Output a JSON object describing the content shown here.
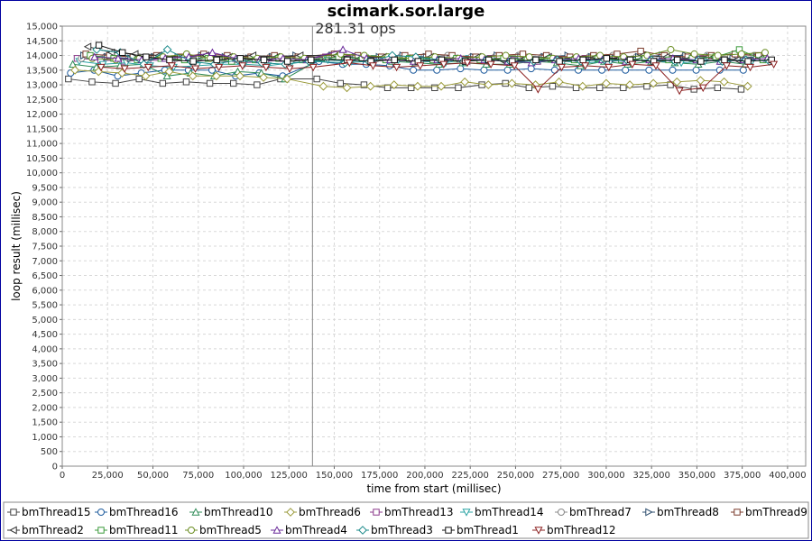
{
  "chart_data": {
    "type": "line",
    "title": "scimark.sor.large",
    "annotation": "281.31 ops",
    "xlabel": "time from start (millisec)",
    "ylabel": "loop result (millisec)",
    "xlim": [
      0,
      410000
    ],
    "ylim": [
      0,
      15000
    ],
    "marker_x": 138000,
    "grid": true,
    "legend_position": "bottom",
    "x_ticks": [
      "0",
      "25,000",
      "50,000",
      "75,000",
      "100,000",
      "125,000",
      "150,000",
      "175,000",
      "200,000",
      "225,000",
      "250,000",
      "275,000",
      "300,000",
      "325,000",
      "350,000",
      "375,000",
      "400,000"
    ],
    "y_ticks": [
      "0",
      "500",
      "1,000",
      "1,500",
      "2,000",
      "2,500",
      "3,000",
      "3,500",
      "4,000",
      "4,500",
      "5,000",
      "5,500",
      "6,000",
      "6,500",
      "7,000",
      "7,500",
      "8,000",
      "8,500",
      "9,000",
      "9,500",
      "10,000",
      "10,500",
      "11,000",
      "11,500",
      "12,000",
      "12,500",
      "13,000",
      "13,500",
      "14,000",
      "14,500",
      "15,000"
    ],
    "x": [
      13000,
      26000,
      39000,
      52000,
      65000,
      78000,
      91000,
      104000,
      117000,
      130000,
      150000,
      163000,
      176000,
      189000,
      202000,
      215000,
      228000,
      241000,
      254000,
      267000,
      280000,
      293000,
      306000,
      319000,
      332000,
      345000,
      358000,
      371000,
      384000
    ],
    "series": [
      {
        "name": "bmThread15",
        "color": "#444444",
        "marker": "square",
        "values": [
          13200,
          13100,
          13050,
          13200,
          13050,
          13100,
          13050,
          13050,
          13000,
          13200,
          13200,
          13050,
          13000,
          12900,
          12900,
          12900,
          12900,
          13000,
          13050,
          12900,
          12950,
          12900,
          12900,
          12900,
          12950,
          13000,
          12850,
          12900,
          12850
        ]
      },
      {
        "name": "bmThread16",
        "color": "#1f5c9e",
        "marker": "circle",
        "values": [
          13400,
          13500,
          13300,
          13400,
          13500,
          13500,
          13500,
          13300,
          13400,
          13300,
          13800,
          13700,
          13700,
          13650,
          13500,
          13500,
          13550,
          13500,
          13500,
          13550,
          13500,
          13500,
          13500,
          13500,
          13500,
          13500,
          13500,
          13500,
          13500
        ]
      },
      {
        "name": "bmThread10",
        "color": "#2e8b57",
        "marker": "triangle-up",
        "values": [
          13700,
          13600,
          13650,
          13700,
          13300,
          13400,
          13300,
          13450,
          13400,
          13200,
          13900,
          13850,
          13900,
          13800,
          13750,
          13700,
          13750,
          13700,
          13700,
          13800,
          13750,
          13650,
          13800,
          13700,
          13800,
          13750,
          13700,
          13800,
          13700
        ]
      },
      {
        "name": "bmThread6",
        "color": "#9a9a3a",
        "marker": "diamond",
        "values": [
          13500,
          13450,
          13400,
          13300,
          13450,
          13300,
          13300,
          13300,
          13250,
          13200,
          12950,
          12900,
          12950,
          13000,
          12950,
          12950,
          13100,
          13000,
          13050,
          13000,
          13100,
          12950,
          13050,
          13000,
          13050,
          13100,
          13150,
          13100,
          12950
        ]
      },
      {
        "name": "bmThread13",
        "color": "#8b3a8b",
        "marker": "square",
        "values": [
          13900,
          13850,
          13800,
          13850,
          13800,
          13850,
          13800,
          13750,
          13800,
          13850,
          13950,
          13900,
          13850,
          13900,
          13800,
          13850,
          13800,
          13900,
          13850,
          13800,
          13850,
          13900,
          13800,
          13850,
          13800,
          13850,
          13900,
          13850,
          13800
        ]
      },
      {
        "name": "bmThread14",
        "color": "#2aa3a3",
        "marker": "triangle-down",
        "values": [
          13800,
          13700,
          13750,
          13650,
          13600,
          13650,
          13700,
          13700,
          13650,
          13750,
          13850,
          13800,
          13900,
          13850,
          13800,
          13750,
          13900,
          13850,
          13800,
          13850,
          13800,
          13750,
          13800,
          13850,
          13800,
          13750,
          13800,
          13850,
          13800
        ]
      },
      {
        "name": "bmThread7",
        "color": "#888888",
        "marker": "circle",
        "values": [
          13900,
          13950,
          13900,
          13950,
          13900,
          13950,
          13900,
          13900,
          13950,
          13900,
          14000,
          13950,
          13900,
          13950,
          13950,
          14000,
          13950,
          13950,
          14000,
          13950,
          13900,
          13950,
          14000,
          13950,
          13900,
          13950,
          14000,
          13950,
          14000
        ]
      },
      {
        "name": "bmThread8",
        "color": "#2f4f6f",
        "marker": "triangle-right",
        "values": [
          14000,
          13950,
          13900,
          13950,
          13950,
          14000,
          13950,
          13900,
          13950,
          14000,
          14000,
          13950,
          13950,
          14000,
          13950,
          13900,
          13950,
          14000,
          13950,
          13950,
          14000,
          13950,
          13900,
          13950,
          14000,
          14000,
          13950,
          13900,
          13950
        ]
      },
      {
        "name": "bmThread9",
        "color": "#7a3a2a",
        "marker": "square",
        "values": [
          14050,
          14000,
          13950,
          14000,
          13950,
          14050,
          14000,
          13950,
          14000,
          13950,
          14050,
          14000,
          13950,
          14000,
          14050,
          14000,
          13950,
          14000,
          14050,
          14000,
          13950,
          14000,
          14050,
          14150,
          14000,
          13950,
          14000,
          14050,
          14000
        ]
      },
      {
        "name": "bmThread2",
        "color": "#333333",
        "marker": "triangle-left",
        "values": [
          14300,
          14100,
          14050,
          14000,
          13950,
          14000,
          13950,
          14000,
          13950,
          14000,
          14000,
          13900,
          13950,
          13900,
          13950,
          13900,
          13950,
          13850,
          13900,
          13950,
          13900,
          13950,
          13900,
          14000,
          13950,
          13900,
          13950,
          13850,
          13900
        ]
      },
      {
        "name": "bmThread11",
        "color": "#3a9a3a",
        "marker": "square",
        "values": [
          14000,
          13900,
          13850,
          13900,
          13850,
          13900,
          13800,
          13850,
          13900,
          13850,
          13950,
          13900,
          13850,
          13900,
          13850,
          13900,
          13850,
          13900,
          13850,
          13900,
          13850,
          13900,
          13850,
          13900,
          13850,
          13900,
          13950,
          14200,
          13850
        ]
      },
      {
        "name": "bmThread5",
        "color": "#6b8e23",
        "marker": "circle",
        "values": [
          13900,
          13850,
          13900,
          13950,
          14050,
          13900,
          13950,
          13900,
          13950,
          13900,
          14050,
          14000,
          13950,
          13900,
          13950,
          13900,
          13950,
          14000,
          13950,
          13900,
          13950,
          14000,
          13950,
          14000,
          14200,
          14050,
          14000,
          14050,
          14100
        ]
      },
      {
        "name": "bmThread4",
        "color": "#6a2a9a",
        "marker": "triangle-up",
        "values": [
          13950,
          13900,
          13850,
          13900,
          13950,
          14100,
          13900,
          13850,
          13900,
          13850,
          14200,
          13900,
          13850,
          13800,
          13850,
          13900,
          13850,
          13800,
          13750,
          13850,
          13900,
          13850,
          13800,
          13850,
          13900,
          13850,
          13800,
          13850,
          13900
        ]
      },
      {
        "name": "bmThread3",
        "color": "#1a8a8a",
        "marker": "diamond",
        "values": [
          14200,
          14100,
          13700,
          14200,
          13800,
          13700,
          13850,
          13750,
          13700,
          13800,
          13750,
          13800,
          14000,
          13950,
          13850,
          13800,
          13850,
          13800,
          13800,
          13850,
          13800,
          13850,
          13800,
          13850,
          13800,
          13850,
          13800,
          13850,
          13800
        ]
      },
      {
        "name": "bmThread1",
        "color": "#111111",
        "marker": "square",
        "values": [
          14350,
          14100,
          13950,
          13850,
          13800,
          13850,
          13900,
          13850,
          13800,
          13850,
          13850,
          13800,
          13850,
          13800,
          13850,
          13800,
          13850,
          13800,
          13850,
          13800,
          13850,
          13900,
          13850,
          13800,
          13850,
          13800,
          13850,
          13800,
          13850
        ]
      },
      {
        "name": "bmThread12",
        "color": "#8b2020",
        "marker": "triangle-down",
        "values": [
          13600,
          13550,
          13600,
          13650,
          13550,
          13600,
          13650,
          13600,
          13550,
          13600,
          13750,
          13650,
          13600,
          13650,
          13700,
          13750,
          13700,
          13650,
          12850,
          13600,
          13650,
          13600,
          13700,
          13650,
          12800,
          12900,
          13650,
          13600,
          13700
        ]
      }
    ]
  }
}
